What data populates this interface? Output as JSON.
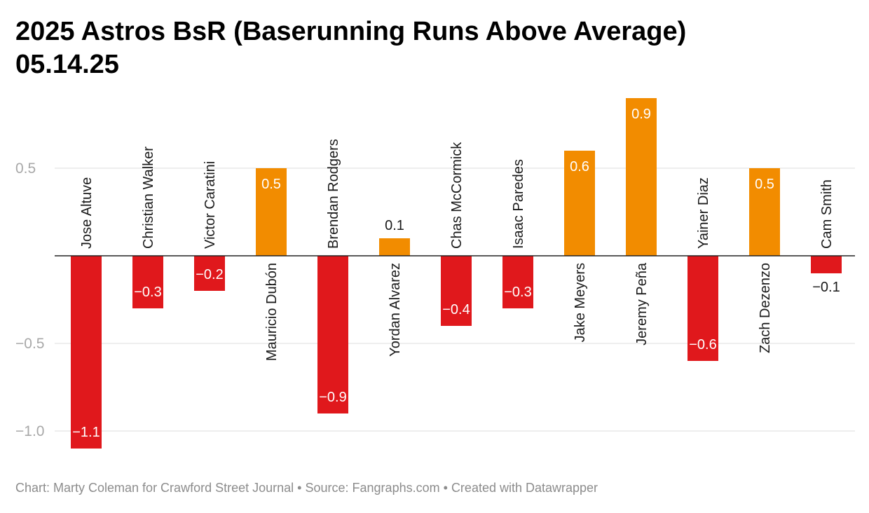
{
  "header": {
    "title_line1": "2025 Astros BsR (Baserunning Runs Above Average)",
    "title_line2": "05.14.25"
  },
  "footer": {
    "credit": "Chart: Marty Coleman for Crawford Street Journal",
    "separator1": "•",
    "source": "Source: Fangraphs.com",
    "separator2": "•",
    "tool": "Created with Datawrapper"
  },
  "colors": {
    "positive": "#f28c00",
    "negative": "#e0181c"
  },
  "chart_data": {
    "type": "bar",
    "title": "2025 Astros BsR (Baserunning Runs Above Average) 05.14.25",
    "xlabel": "",
    "ylabel": "",
    "categories": [
      "Jose Altuve",
      "Christian Walker",
      "Victor Caratini",
      "Mauricio Dubón",
      "Brendan Rodgers",
      "Yordan Alvarez",
      "Chas McCormick",
      "Isaac Paredes",
      "Jake Meyers",
      "Jeremy Peña",
      "Yainer Diaz",
      "Zach Dezenzo",
      "Cam Smith"
    ],
    "values": [
      -1.1,
      -0.3,
      -0.2,
      0.5,
      -0.9,
      0.1,
      -0.4,
      -0.3,
      0.6,
      0.9,
      -0.6,
      0.5,
      -0.1
    ],
    "value_labels": [
      "−1.1",
      "−0.3",
      "−0.2",
      "0.5",
      "−0.9",
      "0.1",
      "−0.4",
      "−0.3",
      "0.6",
      "0.9",
      "−0.6",
      "0.5",
      "−0.1"
    ],
    "ylim": [
      -1.1,
      0.9
    ],
    "yticks": [
      0.5,
      -0.5,
      -1.0
    ],
    "ytick_labels": [
      "0.5",
      "−0.5",
      "−1.0"
    ],
    "grid": true,
    "legend": "none"
  }
}
